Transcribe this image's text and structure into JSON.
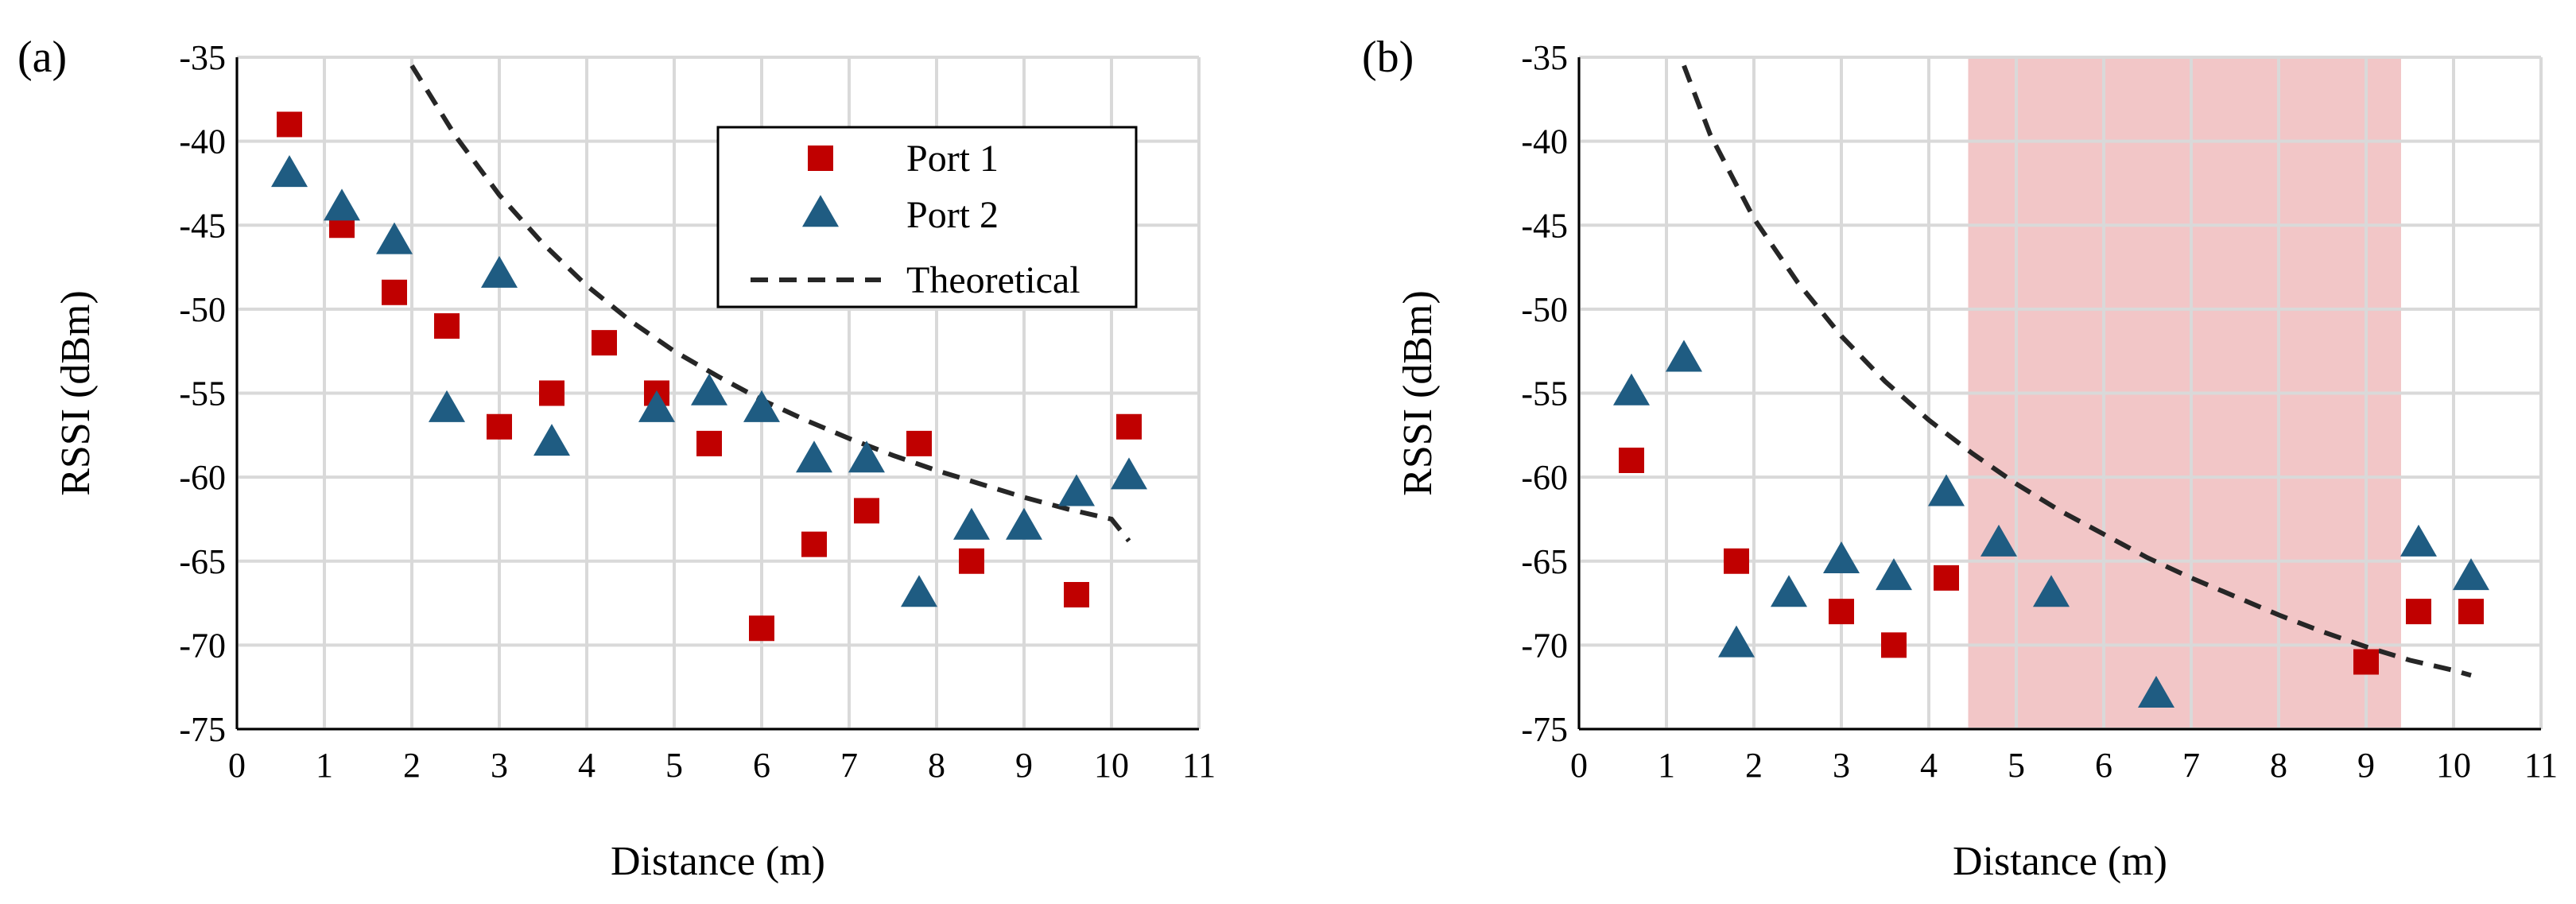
{
  "colors": {
    "port1": "#c00000",
    "port2": "#1f5c82",
    "theoretical": "#262626",
    "grid": "#d9d9d9",
    "shade": "#f2c6c7",
    "axis": "#000000"
  },
  "legend": {
    "port1": "Port 1",
    "port2": "Port 2",
    "theoretical": "Theoretical"
  },
  "chart_data": [
    {
      "type": "scatter",
      "panel_label": "(a)",
      "xlabel": "Distance (m)",
      "ylabel": "RSSI (dBm)",
      "xlim": [
        0,
        11
      ],
      "ylim": [
        -75,
        -35
      ],
      "xticks": [
        0,
        1,
        2,
        3,
        4,
        5,
        6,
        7,
        8,
        9,
        10,
        11
      ],
      "yticks": [
        -35,
        -40,
        -45,
        -50,
        -55,
        -60,
        -65,
        -70,
        -75
      ],
      "grid": true,
      "legend_position": "top-right",
      "series": [
        {
          "name": "Port 1",
          "marker": "square",
          "x": [
            0.6,
            1.2,
            1.8,
            2.4,
            3.0,
            3.6,
            4.2,
            4.8,
            5.4,
            6.0,
            6.6,
            7.2,
            7.8,
            8.4,
            9.6,
            10.2
          ],
          "y": [
            -39,
            -45,
            -49,
            -51,
            -57,
            -55,
            -52,
            -55,
            -58,
            -69,
            -64,
            -62,
            -58,
            -65,
            -67,
            -57
          ]
        },
        {
          "name": "Port 2",
          "marker": "triangle",
          "x": [
            0.6,
            1.2,
            1.8,
            2.4,
            3.0,
            3.6,
            4.8,
            5.4,
            6.0,
            6.6,
            7.2,
            7.8,
            8.4,
            9.0,
            9.6,
            10.2
          ],
          "y": [
            -42,
            -44,
            -46,
            -56,
            -48,
            -58,
            -56,
            -55,
            -56,
            -59,
            -59,
            -67,
            -63,
            -63,
            -61,
            -60
          ]
        },
        {
          "name": "Theoretical",
          "line": "dashed",
          "x": [
            2.0,
            2.5,
            3.0,
            3.5,
            4.0,
            4.5,
            5.0,
            5.5,
            6.0,
            6.5,
            7.0,
            7.5,
            8.0,
            8.5,
            9.0,
            9.5,
            10.0,
            10.2
          ],
          "y": [
            -35.5,
            -39.7,
            -43.2,
            -46.1,
            -48.6,
            -50.7,
            -52.5,
            -54.0,
            -55.4,
            -56.6,
            -57.7,
            -58.7,
            -59.6,
            -60.4,
            -61.2,
            -61.9,
            -62.5,
            -63.8
          ]
        }
      ]
    },
    {
      "type": "scatter",
      "panel_label": "(b)",
      "xlabel": "Distance (m)",
      "ylabel": "RSSI (dBm)",
      "xlim": [
        0,
        11
      ],
      "ylim": [
        -75,
        -35
      ],
      "xticks": [
        0,
        1,
        2,
        3,
        4,
        5,
        6,
        7,
        8,
        9,
        10,
        11
      ],
      "yticks": [
        -35,
        -40,
        -45,
        -50,
        -55,
        -60,
        -65,
        -70,
        -75
      ],
      "grid": true,
      "shaded_region_x": [
        4.45,
        9.4
      ],
      "series": [
        {
          "name": "Port 1",
          "marker": "square",
          "x": [
            0.6,
            1.8,
            3.0,
            3.6,
            4.2,
            9.0,
            9.6,
            10.2
          ],
          "y": [
            -59,
            -65,
            -68,
            -70,
            -66,
            -71,
            -68,
            -68
          ]
        },
        {
          "name": "Port 2",
          "marker": "triangle",
          "x": [
            0.6,
            1.2,
            1.8,
            2.4,
            3.0,
            3.6,
            4.2,
            4.8,
            5.4,
            6.6,
            9.6,
            10.2
          ],
          "y": [
            -55,
            -53,
            -70,
            -67,
            -65,
            -66,
            -61,
            -64,
            -67,
            -73,
            -64,
            -66
          ]
        },
        {
          "name": "Theoretical",
          "line": "dashed",
          "x": [
            1.2,
            1.5,
            2.0,
            2.5,
            3.0,
            3.5,
            4.0,
            4.5,
            5.0,
            5.5,
            6.0,
            6.5,
            7.0,
            7.5,
            8.0,
            8.5,
            9.0,
            9.5,
            10.0,
            10.2
          ],
          "y": [
            -35.5,
            -39.6,
            -44.6,
            -48.4,
            -51.6,
            -54.3,
            -56.6,
            -58.6,
            -60.4,
            -62.0,
            -63.4,
            -64.8,
            -66.0,
            -67.1,
            -68.2,
            -69.2,
            -70.1,
            -70.9,
            -71.5,
            -71.8
          ]
        }
      ]
    }
  ]
}
